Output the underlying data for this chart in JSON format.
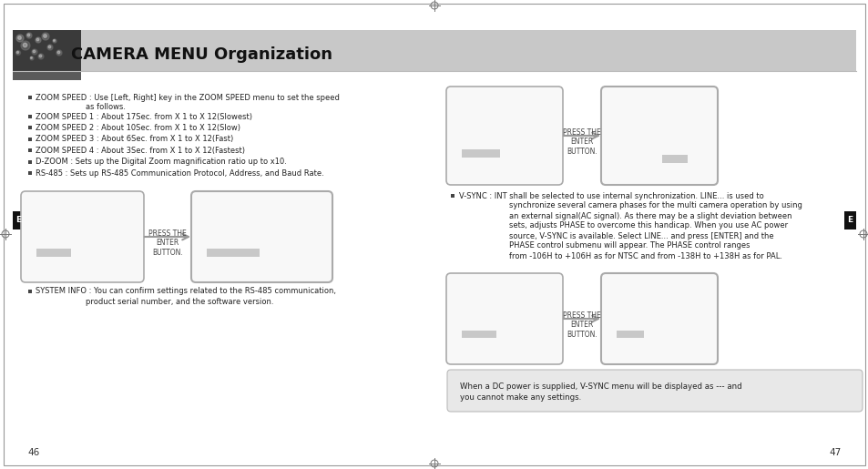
{
  "title": "CAMERA MENU Organization",
  "title_fontsize": 13,
  "title_font_weight": "bold",
  "bg_color": "#ffffff",
  "page_left": "46",
  "page_right": "47",
  "left_bullet_line1": "ZOOM SPEED : Use [Left, Right] key in the ZOOM SPEED menu to set the speed",
  "left_bullet_line1b": "as follows.",
  "left_bullet_items": [
    "ZOOM SPEED 1 : About 17Sec. from X 1 to X 12(Slowest)",
    "ZOOM SPEED 2 : About 10Sec. from X 1 to X 12(Slow)",
    "ZOOM SPEED 3 : About 6Sec. from X 1 to X 12(Fast)",
    "ZOOM SPEED 4 : About 3Sec. from X 1 to X 12(Fastest)",
    "D-ZOOM : Sets up the Digital Zoom magnification ratio up to x10.",
    "RS-485 : Sets up RS-485 Communication Protocol, Address, and Baud Rate."
  ],
  "left_bottom_line1": "SYSTEM INFO : You can confirm settings related to the RS-485 communication,",
  "left_bottom_line2": "product serial number, and the software version.",
  "vsync_lines": [
    "V-SYNC : INT shall be selected to use internal synchronization. LINE... is used to",
    "synchronize several camera phases for the multi camera operation by using",
    "an external signal(AC signal). As there may be a slight deviation between",
    "sets, adjusts PHASE to overcome this handicap. When you use AC power",
    "source, V-SYNC is available. Select LINE... and press [ENTER] and the",
    "PHASE control submenu will appear. The PHASE control ranges",
    "from -106H to +106H as for NTSC and from -138H to +138H as for PAL."
  ],
  "note_line1": "When a DC power is supplied, V-SYNC menu will be displayed as --- and",
  "note_line2": "you cannot make any settings.",
  "press_enter": "PRESS THE\nENTER\nBUTTON.",
  "side_label": "E",
  "header_gray": "#c8c8c8",
  "header_dark": "#3a3a3a",
  "subbar_dark": "#5a5a5a",
  "box_fill": "#f8f8f8",
  "box_border": "#aaaaaa",
  "bar_fill": "#c8c8c8",
  "note_fill": "#e8e8e8",
  "note_border": "#bbbbbb",
  "bullet_fill": "#444444",
  "text_color": "#222222",
  "side_fill": "#111111",
  "arrow_color": "#999999"
}
